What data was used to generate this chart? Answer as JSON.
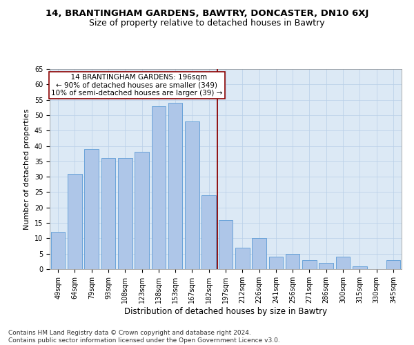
{
  "title": "14, BRANTINGHAM GARDENS, BAWTRY, DONCASTER, DN10 6XJ",
  "subtitle": "Size of property relative to detached houses in Bawtry",
  "xlabel": "Distribution of detached houses by size in Bawtry",
  "ylabel": "Number of detached properties",
  "bar_labels": [
    "49sqm",
    "64sqm",
    "79sqm",
    "93sqm",
    "108sqm",
    "123sqm",
    "138sqm",
    "153sqm",
    "167sqm",
    "182sqm",
    "197sqm",
    "212sqm",
    "226sqm",
    "241sqm",
    "256sqm",
    "271sqm",
    "286sqm",
    "300sqm",
    "315sqm",
    "330sqm",
    "345sqm"
  ],
  "bar_values": [
    12,
    31,
    39,
    36,
    36,
    38,
    53,
    54,
    48,
    24,
    16,
    7,
    10,
    4,
    5,
    3,
    2,
    4,
    1,
    0,
    3
  ],
  "bar_color": "#aec6e8",
  "bar_edge_color": "#5b9bd5",
  "vline_x_index": 10,
  "vline_color": "#8B0000",
  "annotation_line1": "  14 BRANTINGHAM GARDENS: 196sqm",
  "annotation_line2": "← 90% of detached houses are smaller (349)",
  "annotation_line3": "10% of semi-detached houses are larger (39) →",
  "annotation_box_color": "white",
  "annotation_box_edge_color": "#8B0000",
  "ylim": [
    0,
    65
  ],
  "yticks": [
    0,
    5,
    10,
    15,
    20,
    25,
    30,
    35,
    40,
    45,
    50,
    55,
    60,
    65
  ],
  "grid_color": "#b8cfe8",
  "plot_bg_color": "#dce9f5",
  "footer_line1": "Contains HM Land Registry data © Crown copyright and database right 2024.",
  "footer_line2": "Contains public sector information licensed under the Open Government Licence v3.0.",
  "title_fontsize": 9.5,
  "subtitle_fontsize": 9,
  "xlabel_fontsize": 8.5,
  "ylabel_fontsize": 8,
  "tick_fontsize": 7,
  "footer_fontsize": 6.5,
  "annotation_fontsize": 7.5
}
